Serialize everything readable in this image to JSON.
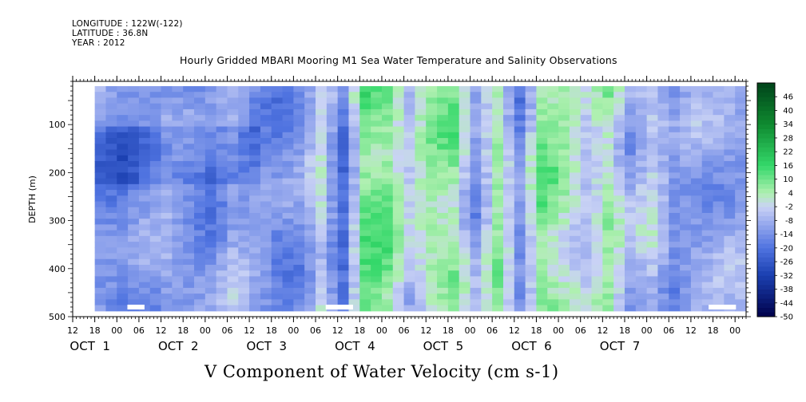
{
  "header": {
    "longitude": "LONGITUDE : 122W(-122)",
    "latitude": "LATITUDE : 36.8N",
    "year": "YEAR : 2012"
  },
  "chart_data": {
    "type": "heatmap",
    "title": "Hourly Gridded MBARI Mooring M1 Sea Water Temperature and Salinity Observations",
    "xlabel": "V Component of Water Velocity (cm s-1)",
    "ylabel": "DEPTH (m)",
    "x_hour_range": [
      "OCT 1 12",
      "OCT 8 03"
    ],
    "x_hour_ticks": [
      "12",
      "18",
      "00",
      "06",
      "12",
      "18",
      "00",
      "06",
      "12",
      "18",
      "00",
      "06",
      "12",
      "18",
      "00",
      "06",
      "12",
      "18",
      "00",
      "06",
      "12",
      "18",
      "00",
      "06",
      "12",
      "18",
      "00",
      "06",
      "12",
      "18",
      "00"
    ],
    "x_day_labels": [
      "OCT  1",
      "OCT  2",
      "OCT  3",
      "OCT  4",
      "OCT  5",
      "OCT  6",
      "OCT  7"
    ],
    "y_ticks": [
      100,
      200,
      300,
      400,
      500
    ],
    "ylim": [
      500,
      10
    ],
    "depth_range": [
      20,
      485
    ],
    "colorbar": {
      "levels": [
        "46",
        "40",
        "34",
        "28",
        "22",
        "16",
        "10",
        "4",
        "-2",
        "-8",
        "-14",
        "-20",
        "-26",
        "-32",
        "-38",
        "-44",
        "-50"
      ],
      "range": [
        -50,
        52
      ],
      "color_stops": [
        "#00004a",
        "#1a3fb0",
        "#4f73e0",
        "#a0b0ef",
        "#c9d2f5",
        "#aff0b0",
        "#34d86a",
        "#0f8a30",
        "#00441a"
      ]
    },
    "velocity_pattern": {
      "hours": [
        0,
        6,
        12,
        18,
        24,
        30,
        36,
        42,
        48,
        54,
        60,
        66,
        72,
        78,
        84,
        90,
        96,
        102,
        108,
        114,
        120,
        126,
        132,
        138,
        144,
        150,
        156,
        162
      ],
      "velocity_cm_s": [
        -14,
        -17,
        -13,
        -9,
        -12,
        -14,
        -8,
        -12,
        -16,
        -14,
        -2,
        -20,
        11,
        9,
        -4,
        5,
        7,
        -12,
        6,
        -14,
        9,
        4,
        -4,
        5,
        -9,
        -3,
        -13,
        -10
      ]
    }
  }
}
